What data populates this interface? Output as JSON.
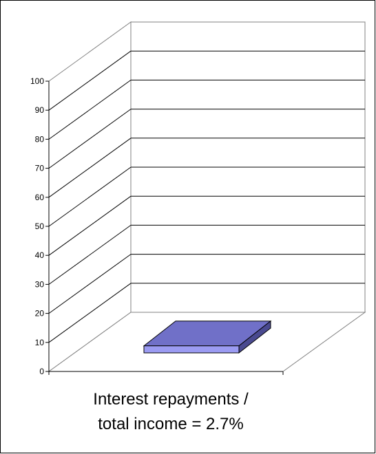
{
  "chart_data": {
    "type": "bar",
    "categories": [
      "Interest repayments / total income = 2.7%"
    ],
    "values": [
      2.7
    ],
    "ylim": [
      0,
      100
    ],
    "yticks": [
      0,
      10,
      20,
      30,
      40,
      50,
      60,
      70,
      80,
      90,
      100
    ],
    "grid": true,
    "legend": "none",
    "bar_color": "#6e6ec2",
    "bar_top_color": "#7070c8",
    "bar_front_color": "#9b9bf2",
    "caption_lines": [
      "Interest repayments /",
      "total income = 2.7%"
    ]
  }
}
